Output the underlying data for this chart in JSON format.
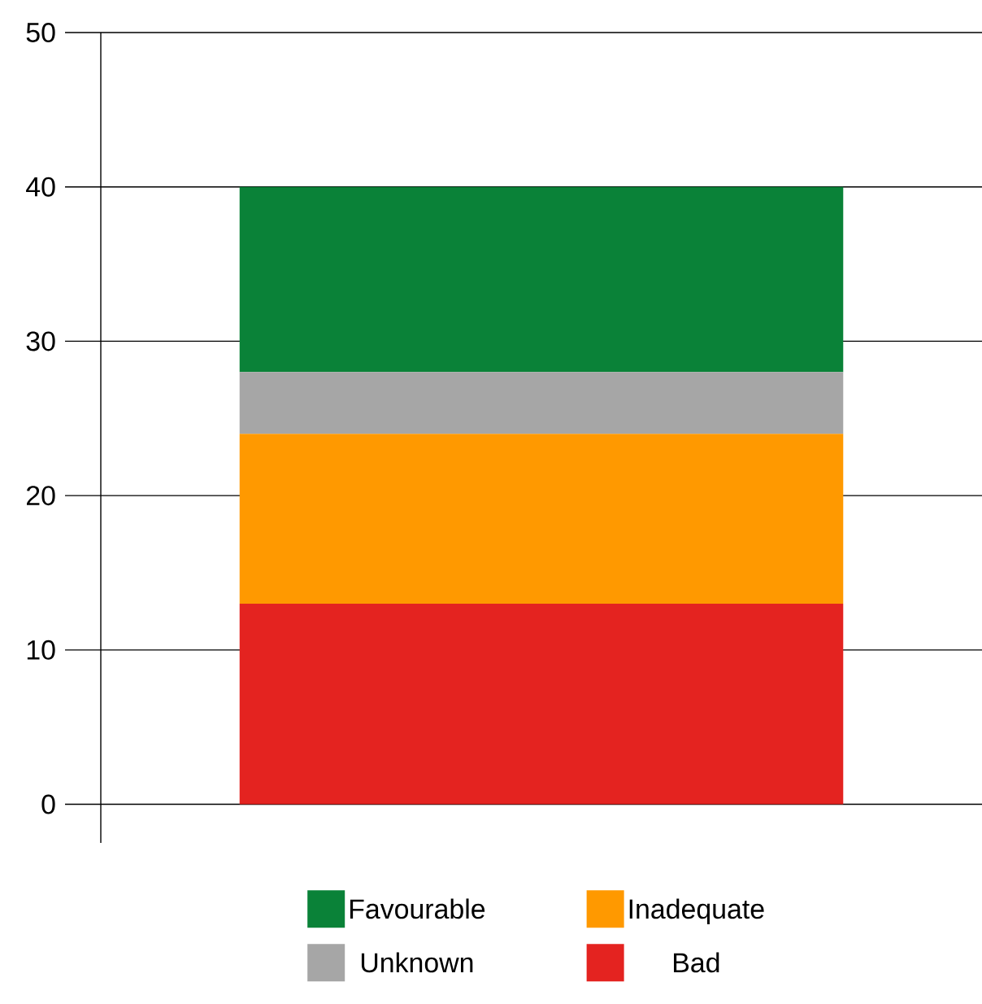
{
  "chart_data": {
    "type": "bar",
    "stacked": true,
    "categories": [
      null
    ],
    "series": [
      {
        "name": "Bad",
        "color": "#e42320",
        "values": [
          13
        ]
      },
      {
        "name": "Inadequate",
        "color": "#ff9900",
        "values": [
          11
        ]
      },
      {
        "name": "Unknown",
        "color": "#a6a6a6",
        "values": [
          4
        ]
      },
      {
        "name": "Favourable",
        "color": "#0a8238",
        "values": [
          12
        ]
      }
    ],
    "ylim": [
      -2.5,
      50
    ],
    "yticks": [
      0,
      10,
      20,
      30,
      40,
      50
    ],
    "grid": "y",
    "legend": "bottom"
  }
}
